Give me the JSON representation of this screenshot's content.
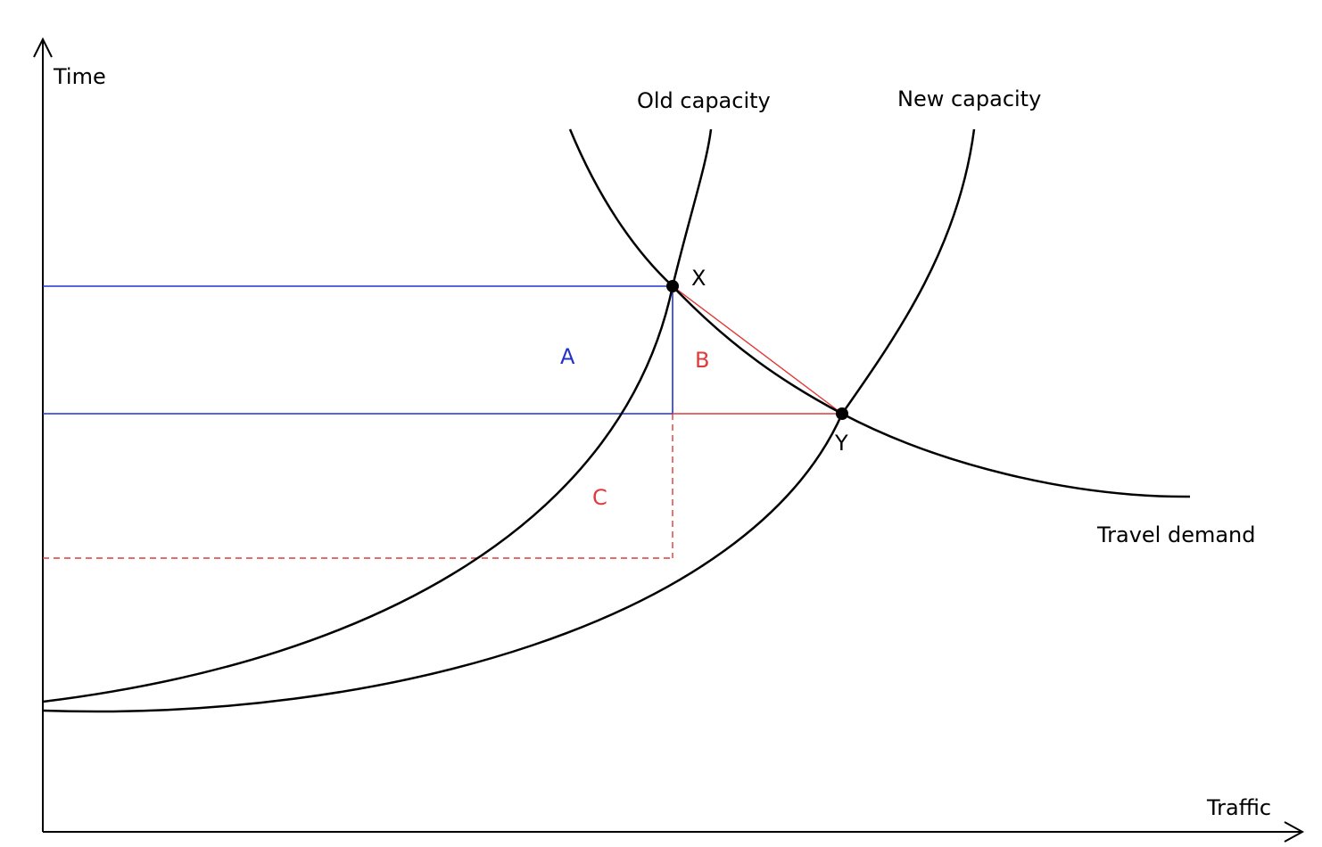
{
  "axes": {
    "y_label": "Time",
    "x_label": "Traffic"
  },
  "curves": {
    "old_capacity": "Old capacity",
    "new_capacity": "New capacity",
    "travel_demand": "Travel demand"
  },
  "points": {
    "x": "X",
    "y": "Y"
  },
  "regions": {
    "a": "A",
    "b": "B",
    "c": "C"
  },
  "colors": {
    "axis": "#000000",
    "curve": "#000000",
    "blue": "#2233cc",
    "red": "#e03a3a"
  }
}
